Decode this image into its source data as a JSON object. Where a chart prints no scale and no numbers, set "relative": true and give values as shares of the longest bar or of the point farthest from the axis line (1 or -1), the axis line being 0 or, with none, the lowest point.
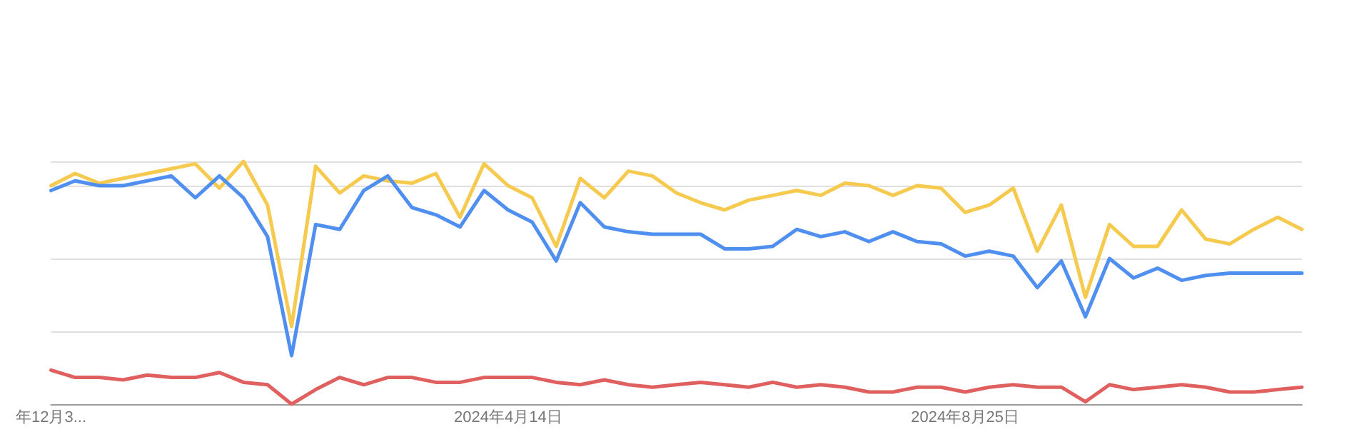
{
  "chart_data": {
    "type": "line",
    "relative": true,
    "grid": "y",
    "marker": "none",
    "line_style": "solid",
    "tick_labels": "x",
    "categories": [
      "年12月3...",
      null,
      null,
      null,
      null,
      null,
      null,
      null,
      null,
      null,
      null,
      null,
      null,
      null,
      null,
      null,
      null,
      null,
      null,
      "2024年4月14日",
      null,
      null,
      null,
      null,
      null,
      null,
      null,
      null,
      null,
      null,
      null,
      null,
      null,
      null,
      null,
      null,
      null,
      null,
      "2024年8月25日",
      null,
      null,
      null,
      null,
      null,
      null,
      null,
      null,
      null,
      null,
      null,
      null,
      null,
      null
    ],
    "series": [
      {
        "color": "#f6c94f",
        "values": [
          0.9,
          0.95,
          0.91,
          0.93,
          0.95,
          0.97,
          0.99,
          0.89,
          1.0,
          0.82,
          0.32,
          0.98,
          0.87,
          0.94,
          0.92,
          0.91,
          0.95,
          0.77,
          0.99,
          0.9,
          0.85,
          0.65,
          0.93,
          0.85,
          0.96,
          0.94,
          0.87,
          0.83,
          0.8,
          0.84,
          0.86,
          0.88,
          0.86,
          0.91,
          0.9,
          0.86,
          0.9,
          0.89,
          0.79,
          0.82,
          0.89,
          0.63,
          0.82,
          0.44,
          0.74,
          0.65,
          0.65,
          0.8,
          0.68,
          0.66,
          0.72,
          0.77,
          0.72
        ]
      },
      {
        "color": "#4f8ff0",
        "values": [
          0.88,
          0.92,
          0.9,
          0.9,
          0.92,
          0.94,
          0.85,
          0.94,
          0.85,
          0.69,
          0.2,
          0.74,
          0.72,
          0.88,
          0.94,
          0.81,
          0.78,
          0.73,
          0.88,
          0.8,
          0.75,
          0.59,
          0.83,
          0.73,
          0.71,
          0.7,
          0.7,
          0.7,
          0.64,
          0.64,
          0.65,
          0.72,
          0.69,
          0.71,
          0.67,
          0.71,
          0.67,
          0.66,
          0.61,
          0.63,
          0.61,
          0.48,
          0.59,
          0.36,
          0.6,
          0.52,
          0.56,
          0.51,
          0.53,
          0.54,
          0.54,
          0.54,
          0.54
        ]
      },
      {
        "color": "#e06060",
        "values": [
          0.14,
          0.11,
          0.11,
          0.1,
          0.12,
          0.11,
          0.11,
          0.13,
          0.09,
          0.08,
          0.0,
          0.06,
          0.11,
          0.08,
          0.11,
          0.11,
          0.09,
          0.09,
          0.11,
          0.11,
          0.11,
          0.09,
          0.08,
          0.1,
          0.08,
          0.07,
          0.08,
          0.09,
          0.08,
          0.07,
          0.09,
          0.07,
          0.08,
          0.07,
          0.05,
          0.05,
          0.07,
          0.07,
          0.05,
          0.07,
          0.08,
          0.07,
          0.07,
          0.01,
          0.08,
          0.06,
          0.07,
          0.08,
          0.07,
          0.05,
          0.05,
          0.06,
          0.07
        ]
      }
    ]
  }
}
